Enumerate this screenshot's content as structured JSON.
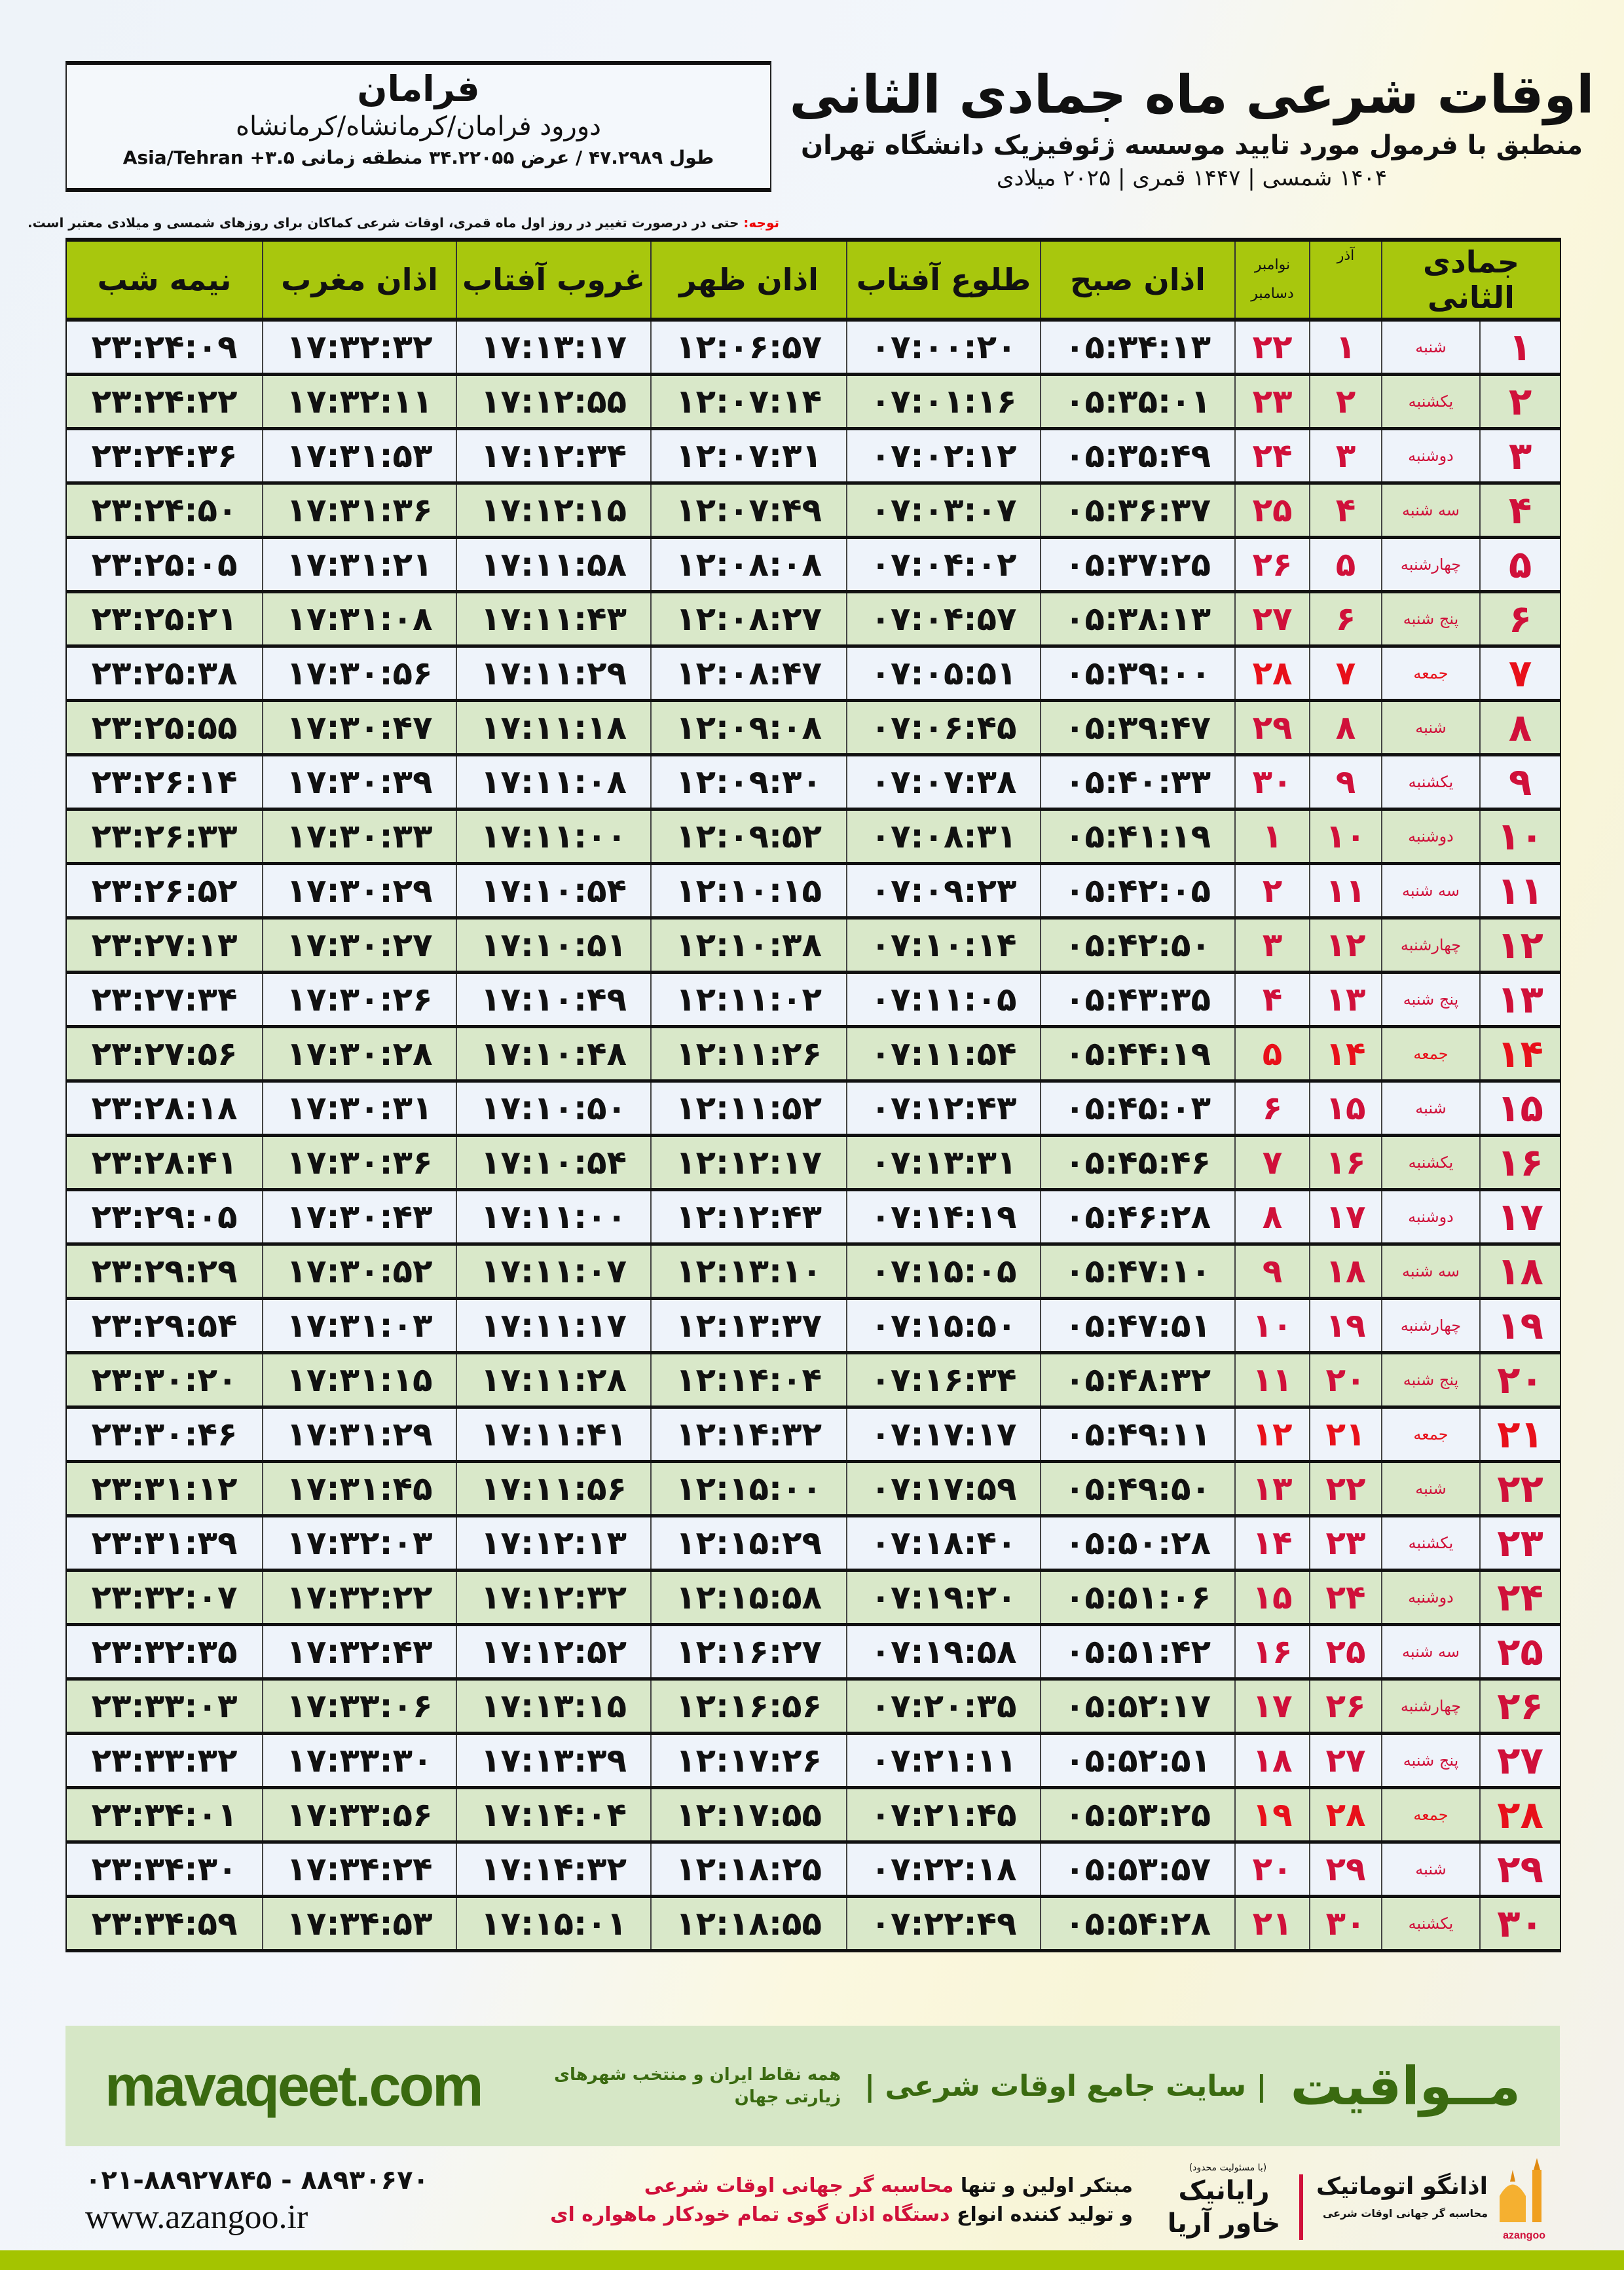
{
  "location": {
    "city": "فرامان",
    "area": "دورود فرامان/کرمانشاه/کرمانشاه",
    "coords": "طول ۴۷.۲۹۸۹ / عرض ۳۴.۲۲۰۵۵ منطقه زمانی ۳.۵+ Asia/Tehran"
  },
  "header": {
    "title": "اوقات شرعی ماه جمادی الثانی",
    "subtitle": "منطبق با فرمول مورد تایید موسسه ژئوفیزیک دانشگاه تهران",
    "dates": "۱۴۰۴ شمسی | ۱۴۴۷ قمری | ۲۰۲۵ میلادی",
    "note_label": "توجه:",
    "note_text": " حتی در درصورت تغییر در روز اول ماه قمری، اوقات شرعی کماکان برای روزهای شمسی و میلادی معتبر است."
  },
  "table": {
    "headers": {
      "hijri": "جمادی الثانی",
      "shamsi": "آذر",
      "greg_1": "نوامبر",
      "greg_2": "دسامبر",
      "fajr": "اذان صبح",
      "sunrise": "طلوع آفتاب",
      "dhuhr": "اذان ظهر",
      "sunset": "غروب آفتاب",
      "maghrib": "اذان مغرب",
      "midnight": "نیمه شب"
    },
    "holiday_color": "#e8101a",
    "rows": [
      {
        "hijri": "۱",
        "weekday": "شنبه",
        "shamsi": "۱",
        "greg": "۲۲",
        "fajr": "۰۵:۳۴:۱۳",
        "sunrise": "۰۷:۰۰:۲۰",
        "dhuhr": "۱۲:۰۶:۵۷",
        "sunset": "۱۷:۱۳:۱۷",
        "maghrib": "۱۷:۳۲:۳۲",
        "midnight": "۲۳:۲۴:۰۹",
        "holiday": false
      },
      {
        "hijri": "۲",
        "weekday": "یکشنبه",
        "shamsi": "۲",
        "greg": "۲۳",
        "fajr": "۰۵:۳۵:۰۱",
        "sunrise": "۰۷:۰۱:۱۶",
        "dhuhr": "۱۲:۰۷:۱۴",
        "sunset": "۱۷:۱۲:۵۵",
        "maghrib": "۱۷:۳۲:۱۱",
        "midnight": "۲۳:۲۴:۲۲",
        "holiday": false
      },
      {
        "hijri": "۳",
        "weekday": "دوشنبه",
        "shamsi": "۳",
        "greg": "۲۴",
        "fajr": "۰۵:۳۵:۴۹",
        "sunrise": "۰۷:۰۲:۱۲",
        "dhuhr": "۱۲:۰۷:۳۱",
        "sunset": "۱۷:۱۲:۳۴",
        "maghrib": "۱۷:۳۱:۵۳",
        "midnight": "۲۳:۲۴:۳۶",
        "holiday": false
      },
      {
        "hijri": "۴",
        "weekday": "سه شنبه",
        "shamsi": "۴",
        "greg": "۲۵",
        "fajr": "۰۵:۳۶:۳۷",
        "sunrise": "۰۷:۰۳:۰۷",
        "dhuhr": "۱۲:۰۷:۴۹",
        "sunset": "۱۷:۱۲:۱۵",
        "maghrib": "۱۷:۳۱:۳۶",
        "midnight": "۲۳:۲۴:۵۰",
        "holiday": false
      },
      {
        "hijri": "۵",
        "weekday": "چهارشنبه",
        "shamsi": "۵",
        "greg": "۲۶",
        "fajr": "۰۵:۳۷:۲۵",
        "sunrise": "۰۷:۰۴:۰۲",
        "dhuhr": "۱۲:۰۸:۰۸",
        "sunset": "۱۷:۱۱:۵۸",
        "maghrib": "۱۷:۳۱:۲۱",
        "midnight": "۲۳:۲۵:۰۵",
        "holiday": false
      },
      {
        "hijri": "۶",
        "weekday": "پنج شنبه",
        "shamsi": "۶",
        "greg": "۲۷",
        "fajr": "۰۵:۳۸:۱۳",
        "sunrise": "۰۷:۰۴:۵۷",
        "dhuhr": "۱۲:۰۸:۲۷",
        "sunset": "۱۷:۱۱:۴۳",
        "maghrib": "۱۷:۳۱:۰۸",
        "midnight": "۲۳:۲۵:۲۱",
        "holiday": false
      },
      {
        "hijri": "۷",
        "weekday": "جمعه",
        "shamsi": "۷",
        "greg": "۲۸",
        "fajr": "۰۵:۳۹:۰۰",
        "sunrise": "۰۷:۰۵:۵۱",
        "dhuhr": "۱۲:۰۸:۴۷",
        "sunset": "۱۷:۱۱:۲۹",
        "maghrib": "۱۷:۳۰:۵۶",
        "midnight": "۲۳:۲۵:۳۸",
        "holiday": true
      },
      {
        "hijri": "۸",
        "weekday": "شنبه",
        "shamsi": "۸",
        "greg": "۲۹",
        "fajr": "۰۵:۳۹:۴۷",
        "sunrise": "۰۷:۰۶:۴۵",
        "dhuhr": "۱۲:۰۹:۰۸",
        "sunset": "۱۷:۱۱:۱۸",
        "maghrib": "۱۷:۳۰:۴۷",
        "midnight": "۲۳:۲۵:۵۵",
        "holiday": false
      },
      {
        "hijri": "۹",
        "weekday": "یکشنبه",
        "shamsi": "۹",
        "greg": "۳۰",
        "fajr": "۰۵:۴۰:۳۳",
        "sunrise": "۰۷:۰۷:۳۸",
        "dhuhr": "۱۲:۰۹:۳۰",
        "sunset": "۱۷:۱۱:۰۸",
        "maghrib": "۱۷:۳۰:۳۹",
        "midnight": "۲۳:۲۶:۱۴",
        "holiday": false
      },
      {
        "hijri": "۱۰",
        "weekday": "دوشنبه",
        "shamsi": "۱۰",
        "greg": "۱",
        "fajr": "۰۵:۴۱:۱۹",
        "sunrise": "۰۷:۰۸:۳۱",
        "dhuhr": "۱۲:۰۹:۵۲",
        "sunset": "۱۷:۱۱:۰۰",
        "maghrib": "۱۷:۳۰:۳۳",
        "midnight": "۲۳:۲۶:۳۳",
        "holiday": false
      },
      {
        "hijri": "۱۱",
        "weekday": "سه شنبه",
        "shamsi": "۱۱",
        "greg": "۲",
        "fajr": "۰۵:۴۲:۰۵",
        "sunrise": "۰۷:۰۹:۲۳",
        "dhuhr": "۱۲:۱۰:۱۵",
        "sunset": "۱۷:۱۰:۵۴",
        "maghrib": "۱۷:۳۰:۲۹",
        "midnight": "۲۳:۲۶:۵۲",
        "holiday": false
      },
      {
        "hijri": "۱۲",
        "weekday": "چهارشنبه",
        "shamsi": "۱۲",
        "greg": "۳",
        "fajr": "۰۵:۴۲:۵۰",
        "sunrise": "۰۷:۱۰:۱۴",
        "dhuhr": "۱۲:۱۰:۳۸",
        "sunset": "۱۷:۱۰:۵۱",
        "maghrib": "۱۷:۳۰:۲۷",
        "midnight": "۲۳:۲۷:۱۳",
        "holiday": false
      },
      {
        "hijri": "۱۳",
        "weekday": "پنج شنبه",
        "shamsi": "۱۳",
        "greg": "۴",
        "fajr": "۰۵:۴۳:۳۵",
        "sunrise": "۰۷:۱۱:۰۵",
        "dhuhr": "۱۲:۱۱:۰۲",
        "sunset": "۱۷:۱۰:۴۹",
        "maghrib": "۱۷:۳۰:۲۶",
        "midnight": "۲۳:۲۷:۳۴",
        "holiday": false
      },
      {
        "hijri": "۱۴",
        "weekday": "جمعه",
        "shamsi": "۱۴",
        "greg": "۵",
        "fajr": "۰۵:۴۴:۱۹",
        "sunrise": "۰۷:۱۱:۵۴",
        "dhuhr": "۱۲:۱۱:۲۶",
        "sunset": "۱۷:۱۰:۴۸",
        "maghrib": "۱۷:۳۰:۲۸",
        "midnight": "۲۳:۲۷:۵۶",
        "holiday": true
      },
      {
        "hijri": "۱۵",
        "weekday": "شنبه",
        "shamsi": "۱۵",
        "greg": "۶",
        "fajr": "۰۵:۴۵:۰۳",
        "sunrise": "۰۷:۱۲:۴۳",
        "dhuhr": "۱۲:۱۱:۵۲",
        "sunset": "۱۷:۱۰:۵۰",
        "maghrib": "۱۷:۳۰:۳۱",
        "midnight": "۲۳:۲۸:۱۸",
        "holiday": false
      },
      {
        "hijri": "۱۶",
        "weekday": "یکشنبه",
        "shamsi": "۱۶",
        "greg": "۷",
        "fajr": "۰۵:۴۵:۴۶",
        "sunrise": "۰۷:۱۳:۳۱",
        "dhuhr": "۱۲:۱۲:۱۷",
        "sunset": "۱۷:۱۰:۵۴",
        "maghrib": "۱۷:۳۰:۳۶",
        "midnight": "۲۳:۲۸:۴۱",
        "holiday": false
      },
      {
        "hijri": "۱۷",
        "weekday": "دوشنبه",
        "shamsi": "۱۷",
        "greg": "۸",
        "fajr": "۰۵:۴۶:۲۸",
        "sunrise": "۰۷:۱۴:۱۹",
        "dhuhr": "۱۲:۱۲:۴۳",
        "sunset": "۱۷:۱۱:۰۰",
        "maghrib": "۱۷:۳۰:۴۳",
        "midnight": "۲۳:۲۹:۰۵",
        "holiday": false
      },
      {
        "hijri": "۱۸",
        "weekday": "سه شنبه",
        "shamsi": "۱۸",
        "greg": "۹",
        "fajr": "۰۵:۴۷:۱۰",
        "sunrise": "۰۷:۱۵:۰۵",
        "dhuhr": "۱۲:۱۳:۱۰",
        "sunset": "۱۷:۱۱:۰۷",
        "maghrib": "۱۷:۳۰:۵۲",
        "midnight": "۲۳:۲۹:۲۹",
        "holiday": false
      },
      {
        "hijri": "۱۹",
        "weekday": "چهارشنبه",
        "shamsi": "۱۹",
        "greg": "۱۰",
        "fajr": "۰۵:۴۷:۵۱",
        "sunrise": "۰۷:۱۵:۵۰",
        "dhuhr": "۱۲:۱۳:۳۷",
        "sunset": "۱۷:۱۱:۱۷",
        "maghrib": "۱۷:۳۱:۰۳",
        "midnight": "۲۳:۲۹:۵۴",
        "holiday": false
      },
      {
        "hijri": "۲۰",
        "weekday": "پنج شنبه",
        "shamsi": "۲۰",
        "greg": "۱۱",
        "fajr": "۰۵:۴۸:۳۲",
        "sunrise": "۰۷:۱۶:۳۴",
        "dhuhr": "۱۲:۱۴:۰۴",
        "sunset": "۱۷:۱۱:۲۸",
        "maghrib": "۱۷:۳۱:۱۵",
        "midnight": "۲۳:۳۰:۲۰",
        "holiday": false
      },
      {
        "hijri": "۲۱",
        "weekday": "جمعه",
        "shamsi": "۲۱",
        "greg": "۱۲",
        "fajr": "۰۵:۴۹:۱۱",
        "sunrise": "۰۷:۱۷:۱۷",
        "dhuhr": "۱۲:۱۴:۳۲",
        "sunset": "۱۷:۱۱:۴۱",
        "maghrib": "۱۷:۳۱:۲۹",
        "midnight": "۲۳:۳۰:۴۶",
        "holiday": true
      },
      {
        "hijri": "۲۲",
        "weekday": "شنبه",
        "shamsi": "۲۲",
        "greg": "۱۳",
        "fajr": "۰۵:۴۹:۵۰",
        "sunrise": "۰۷:۱۷:۵۹",
        "dhuhr": "۱۲:۱۵:۰۰",
        "sunset": "۱۷:۱۱:۵۶",
        "maghrib": "۱۷:۳۱:۴۵",
        "midnight": "۲۳:۳۱:۱۲",
        "holiday": false
      },
      {
        "hijri": "۲۳",
        "weekday": "یکشنبه",
        "shamsi": "۲۳",
        "greg": "۱۴",
        "fajr": "۰۵:۵۰:۲۸",
        "sunrise": "۰۷:۱۸:۴۰",
        "dhuhr": "۱۲:۱۵:۲۹",
        "sunset": "۱۷:۱۲:۱۳",
        "maghrib": "۱۷:۳۲:۰۳",
        "midnight": "۲۳:۳۱:۳۹",
        "holiday": false
      },
      {
        "hijri": "۲۴",
        "weekday": "دوشنبه",
        "shamsi": "۲۴",
        "greg": "۱۵",
        "fajr": "۰۵:۵۱:۰۶",
        "sunrise": "۰۷:۱۹:۲۰",
        "dhuhr": "۱۲:۱۵:۵۸",
        "sunset": "۱۷:۱۲:۳۲",
        "maghrib": "۱۷:۳۲:۲۲",
        "midnight": "۲۳:۳۲:۰۷",
        "holiday": false
      },
      {
        "hijri": "۲۵",
        "weekday": "سه شنبه",
        "shamsi": "۲۵",
        "greg": "۱۶",
        "fajr": "۰۵:۵۱:۴۲",
        "sunrise": "۰۷:۱۹:۵۸",
        "dhuhr": "۱۲:۱۶:۲۷",
        "sunset": "۱۷:۱۲:۵۲",
        "maghrib": "۱۷:۳۲:۴۳",
        "midnight": "۲۳:۳۲:۳۵",
        "holiday": false
      },
      {
        "hijri": "۲۶",
        "weekday": "چهارشنبه",
        "shamsi": "۲۶",
        "greg": "۱۷",
        "fajr": "۰۵:۵۲:۱۷",
        "sunrise": "۰۷:۲۰:۳۵",
        "dhuhr": "۱۲:۱۶:۵۶",
        "sunset": "۱۷:۱۳:۱۵",
        "maghrib": "۱۷:۳۳:۰۶",
        "midnight": "۲۳:۳۳:۰۳",
        "holiday": false
      },
      {
        "hijri": "۲۷",
        "weekday": "پنج شنبه",
        "shamsi": "۲۷",
        "greg": "۱۸",
        "fajr": "۰۵:۵۲:۵۱",
        "sunrise": "۰۷:۲۱:۱۱",
        "dhuhr": "۱۲:۱۷:۲۶",
        "sunset": "۱۷:۱۳:۳۹",
        "maghrib": "۱۷:۳۳:۳۰",
        "midnight": "۲۳:۳۳:۳۲",
        "holiday": false
      },
      {
        "hijri": "۲۸",
        "weekday": "جمعه",
        "shamsi": "۲۸",
        "greg": "۱۹",
        "fajr": "۰۵:۵۳:۲۵",
        "sunrise": "۰۷:۲۱:۴۵",
        "dhuhr": "۱۲:۱۷:۵۵",
        "sunset": "۱۷:۱۴:۰۴",
        "maghrib": "۱۷:۳۳:۵۶",
        "midnight": "۲۳:۳۴:۰۱",
        "holiday": true
      },
      {
        "hijri": "۲۹",
        "weekday": "شنبه",
        "shamsi": "۲۹",
        "greg": "۲۰",
        "fajr": "۰۵:۵۳:۵۷",
        "sunrise": "۰۷:۲۲:۱۸",
        "dhuhr": "۱۲:۱۸:۲۵",
        "sunset": "۱۷:۱۴:۳۲",
        "maghrib": "۱۷:۳۴:۲۴",
        "midnight": "۲۳:۳۴:۳۰",
        "holiday": false
      },
      {
        "hijri": "۳۰",
        "weekday": "یکشنبه",
        "shamsi": "۳۰",
        "greg": "۲۱",
        "fajr": "۰۵:۵۴:۲۸",
        "sunrise": "۰۷:۲۲:۴۹",
        "dhuhr": "۱۲:۱۸:۵۵",
        "sunset": "۱۷:۱۵:۰۱",
        "maghrib": "۱۷:۳۴:۵۳",
        "midnight": "۲۳:۳۴:۵۹",
        "holiday": false
      }
    ]
  },
  "banner": {
    "brand": "مــواقیت",
    "tagline": "| سایت جامع اوقات شرعی |",
    "subtag": "همه نقاط ایران و منتخب شهرهای زیارتی جهان",
    "url": "mavaqeet.com",
    "color": "#3a6a10"
  },
  "footer": {
    "phone": "۰۲۱-۸۸۹۲۷۸۴۵ - ۸۸۹۳۰۶۷۰",
    "website": "www.azangoo.ir",
    "promo1_a": "مبتکر اولین و تنها ",
    "promo1_b": "محاسبه گر جهانی اوقات شرعی",
    "promo2_a": "و تولید کننده انواع ",
    "promo2_b": "دستگاه اذان گوی تمام خودکار ماهواره ای",
    "logo_rayanik": "رایانیک خاور آریا",
    "logo_rayanik_note": "(با مسئولیت محدود)",
    "logo_azangoo": "اذانگو اتوماتیک",
    "logo_azangoo_sub": "محاسبه گر جهانی اوقات شرعی",
    "logo_azangoo_en": "azangoo"
  }
}
